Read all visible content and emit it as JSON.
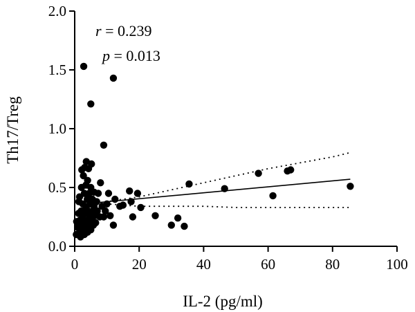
{
  "chart_data": {
    "type": "scatter",
    "xlabel": "IL-2 (pg/ml)",
    "ylabel": "Th17/Treg",
    "xlim": [
      0,
      100
    ],
    "ylim": [
      0,
      2.0
    ],
    "x_ticks": [
      0,
      20,
      40,
      60,
      80,
      100
    ],
    "y_ticks": [
      "0.0",
      "0.5",
      "1.0",
      "1.5",
      "2.0"
    ],
    "annotation": {
      "r_symbol": "r",
      "r_value": "= 0.239",
      "p_symbol": "p",
      "p_value": "= 0.013"
    },
    "points": [
      {
        "x": 0.5,
        "y": 0.1
      },
      {
        "x": 0.6,
        "y": 0.21
      },
      {
        "x": 1.0,
        "y": 0.16
      },
      {
        "x": 1.2,
        "y": 0.28
      },
      {
        "x": 1.3,
        "y": 0.38
      },
      {
        "x": 1.5,
        "y": 0.12
      },
      {
        "x": 1.5,
        "y": 0.42
      },
      {
        "x": 1.6,
        "y": 0.22
      },
      {
        "x": 1.8,
        "y": 0.08
      },
      {
        "x": 2.0,
        "y": 0.17
      },
      {
        "x": 2.0,
        "y": 0.3
      },
      {
        "x": 2.1,
        "y": 0.5
      },
      {
        "x": 2.2,
        "y": 0.65
      },
      {
        "x": 2.3,
        "y": 0.13
      },
      {
        "x": 2.5,
        "y": 0.25
      },
      {
        "x": 2.5,
        "y": 0.36
      },
      {
        "x": 2.7,
        "y": 0.6
      },
      {
        "x": 2.8,
        "y": 0.2
      },
      {
        "x": 3.0,
        "y": 0.45
      },
      {
        "x": 3.0,
        "y": 0.1
      },
      {
        "x": 3.1,
        "y": 0.67
      },
      {
        "x": 3.2,
        "y": 0.28
      },
      {
        "x": 3.3,
        "y": 0.15
      },
      {
        "x": 3.5,
        "y": 0.33
      },
      {
        "x": 3.5,
        "y": 0.52
      },
      {
        "x": 3.6,
        "y": 0.72
      },
      {
        "x": 3.8,
        "y": 0.22
      },
      {
        "x": 3.9,
        "y": 0.4
      },
      {
        "x": 4.0,
        "y": 0.12
      },
      {
        "x": 4.0,
        "y": 0.56
      },
      {
        "x": 4.2,
        "y": 0.3
      },
      {
        "x": 4.3,
        "y": 0.66
      },
      {
        "x": 4.5,
        "y": 0.18
      },
      {
        "x": 4.5,
        "y": 0.45
      },
      {
        "x": 4.7,
        "y": 0.26
      },
      {
        "x": 4.8,
        "y": 0.36
      },
      {
        "x": 5.0,
        "y": 0.5
      },
      {
        "x": 5.0,
        "y": 0.14
      },
      {
        "x": 5.2,
        "y": 0.7
      },
      {
        "x": 5.3,
        "y": 0.22
      },
      {
        "x": 5.5,
        "y": 0.4
      },
      {
        "x": 5.6,
        "y": 0.3
      },
      {
        "x": 5.8,
        "y": 0.18
      },
      {
        "x": 6.0,
        "y": 0.34
      },
      {
        "x": 6.0,
        "y": 0.46
      },
      {
        "x": 6.3,
        "y": 0.26
      },
      {
        "x": 6.5,
        "y": 0.2
      },
      {
        "x": 6.8,
        "y": 0.38
      },
      {
        "x": 7.0,
        "y": 0.3
      },
      {
        "x": 7.3,
        "y": 0.45
      },
      {
        "x": 7.8,
        "y": 0.25
      },
      {
        "x": 8.0,
        "y": 0.54
      },
      {
        "x": 8.5,
        "y": 0.34
      },
      {
        "x": 9.0,
        "y": 0.25
      },
      {
        "x": 9.5,
        "y": 0.3
      },
      {
        "x": 10.0,
        "y": 0.36
      },
      {
        "x": 10.5,
        "y": 0.45
      },
      {
        "x": 11.0,
        "y": 0.26
      },
      {
        "x": 12.0,
        "y": 0.18
      },
      {
        "x": 12.5,
        "y": 0.4
      },
      {
        "x": 14.0,
        "y": 0.34
      },
      {
        "x": 15.0,
        "y": 0.35
      },
      {
        "x": 17.0,
        "y": 0.47
      },
      {
        "x": 17.5,
        "y": 0.38
      },
      {
        "x": 18.0,
        "y": 0.25
      },
      {
        "x": 19.5,
        "y": 0.45
      },
      {
        "x": 20.5,
        "y": 0.33
      },
      {
        "x": 25.0,
        "y": 0.26
      },
      {
        "x": 30.0,
        "y": 0.18
      },
      {
        "x": 32.0,
        "y": 0.24
      },
      {
        "x": 34.0,
        "y": 0.17
      },
      {
        "x": 35.5,
        "y": 0.53
      },
      {
        "x": 46.5,
        "y": 0.49
      },
      {
        "x": 57.0,
        "y": 0.62
      },
      {
        "x": 61.5,
        "y": 0.43
      },
      {
        "x": 66.0,
        "y": 0.64
      },
      {
        "x": 67.0,
        "y": 0.65
      },
      {
        "x": 85.5,
        "y": 0.51
      },
      {
        "x": 2.8,
        "y": 1.53
      },
      {
        "x": 5.0,
        "y": 1.21
      },
      {
        "x": 9.0,
        "y": 0.86
      },
      {
        "x": 12.0,
        "y": 1.43
      }
    ],
    "fit_line": {
      "x": [
        2.5,
        85.5
      ],
      "y": [
        0.36,
        0.57
      ]
    },
    "ci_upper": {
      "x": [
        5,
        10,
        20,
        30,
        40,
        50,
        60,
        70,
        80,
        86
      ],
      "y": [
        0.36,
        0.38,
        0.42,
        0.48,
        0.54,
        0.6,
        0.66,
        0.71,
        0.76,
        0.8
      ]
    },
    "ci_lower": {
      "x": [
        5,
        10,
        20,
        30,
        40,
        50,
        60,
        70,
        80,
        86
      ],
      "y": [
        0.36,
        0.36,
        0.34,
        0.34,
        0.34,
        0.33,
        0.33,
        0.33,
        0.33,
        0.33
      ]
    },
    "grid": false,
    "legend": "none"
  }
}
